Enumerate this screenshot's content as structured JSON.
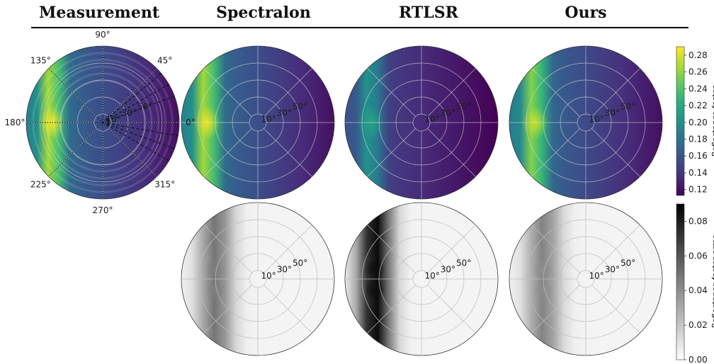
{
  "figure": {
    "column_titles": [
      "Measurement",
      "Spectralon",
      "RTLSR",
      "Ours"
    ],
    "angle_labels": [
      "0°",
      "45°",
      "90°",
      "135°",
      "180°",
      "225°",
      "270°",
      "315°"
    ],
    "zenith_labels": [
      "10°",
      "30°",
      "50°"
    ]
  },
  "colors": {
    "viridis": [
      "#440154",
      "#472d7b",
      "#3b528b",
      "#2c728e",
      "#21918c",
      "#28ae80",
      "#5ec962",
      "#addc30",
      "#fde725"
    ],
    "greys": [
      "#ffffff",
      "#000000"
    ]
  },
  "chart_data": [
    {
      "type": "heatmap",
      "projection": "polar",
      "row": "reflectance",
      "colorbar": {
        "label": "Reflectance factor",
        "colormap": "viridis",
        "range": [
          0.113,
          0.29
        ],
        "ticks": [
          "0.12",
          "0.14",
          "0.16",
          "0.18",
          "0.20",
          "0.22",
          "0.24",
          "0.26",
          "0.28"
        ]
      },
      "panels": [
        {
          "name": "Measurement",
          "peak": 0.285,
          "peak_azimuth_deg": 180,
          "peak_zenith_deg": 60,
          "min": 0.12,
          "banded": true,
          "dotted_lines_azimuth_deg": [
            0,
            45,
            90,
            135,
            180,
            225,
            270,
            315
          ],
          "dashed_lines_azimuth_deg": [
            20,
            30,
            40,
            330,
            340,
            350
          ]
        },
        {
          "name": "Spectralon",
          "peak": 0.285,
          "peak_azimuth_deg": 180,
          "peak_zenith_deg": 60,
          "min": 0.12
        },
        {
          "name": "RTLSR",
          "peak": 0.215,
          "peak_azimuth_deg": 180,
          "peak_zenith_deg": 60,
          "min": 0.113
        },
        {
          "name": "Ours",
          "peak": 0.275,
          "peak_azimuth_deg": 180,
          "peak_zenith_deg": 60,
          "min": 0.12
        }
      ]
    },
    {
      "type": "heatmap",
      "projection": "polar",
      "row": "error",
      "colorbar": {
        "label": "Reflectance factor error",
        "colormap": "greys",
        "range": [
          0.0,
          0.09
        ],
        "ticks": [
          "0.00",
          "0.02",
          "0.04",
          "0.06",
          "0.08"
        ]
      },
      "panels": [
        {
          "name": "Spectralon",
          "peak": 0.045,
          "peak_azimuth_deg": 180,
          "peak_zenith_deg": 50
        },
        {
          "name": "RTLSR",
          "peak": 0.085,
          "peak_azimuth_deg": 180,
          "peak_zenith_deg": 55
        },
        {
          "name": "Ours",
          "peak": 0.04,
          "peak_azimuth_deg": 180,
          "peak_zenith_deg": 50
        }
      ]
    }
  ]
}
